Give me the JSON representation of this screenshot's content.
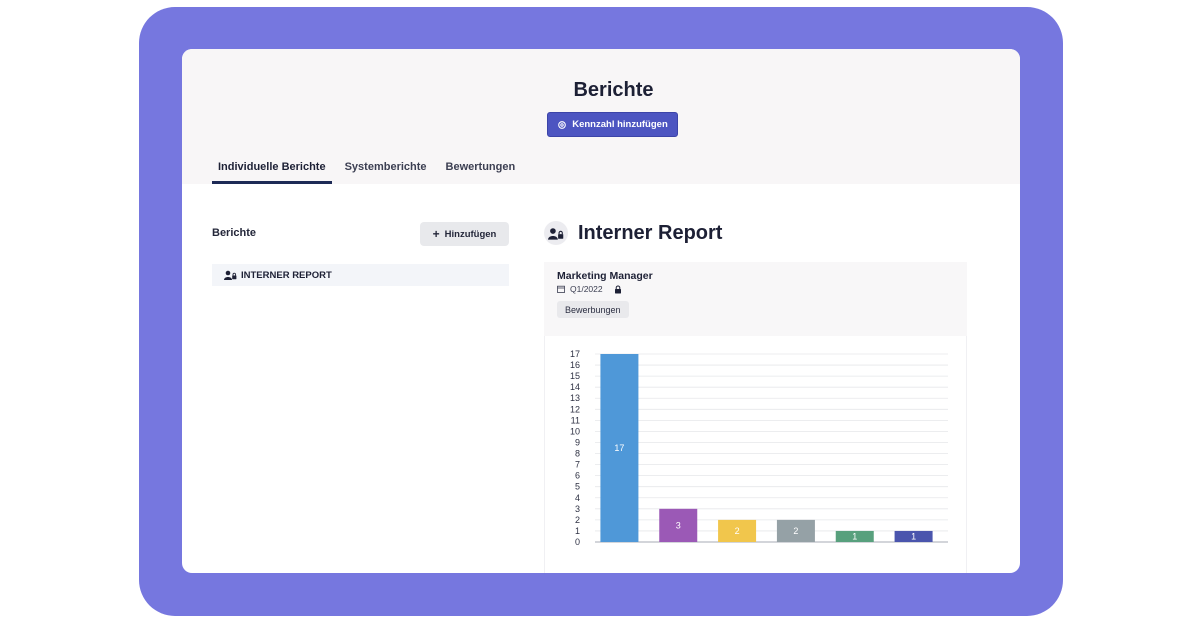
{
  "page": {
    "title": "Berichte",
    "add_metric_label": "Kennzahl hinzufügen"
  },
  "tabs": [
    {
      "label": "Individuelle Berichte",
      "active": true
    },
    {
      "label": "Systemberichte",
      "active": false
    },
    {
      "label": "Bewertungen",
      "active": false
    }
  ],
  "sidebar": {
    "heading": "Berichte",
    "add_label": "Hinzufügen",
    "items": [
      {
        "label": "INTERNER REPORT"
      }
    ]
  },
  "report": {
    "title": "Interner Report",
    "card_title": "Marketing Manager",
    "period": "Q1/2022",
    "tag": "Bewerbungen"
  },
  "colors": {
    "frame": "#7677df",
    "primary_button": "#4d55c1",
    "tab_underline": "#1d2a56"
  },
  "chart_data": {
    "type": "bar",
    "categories": [
      "",
      "",
      "",
      "",
      "",
      ""
    ],
    "values": [
      17,
      3,
      2,
      2,
      1,
      1
    ],
    "data_labels": [
      "17",
      "3",
      "2",
      "2",
      "1",
      "1"
    ],
    "colors": [
      "#4f98d8",
      "#9b59b6",
      "#f1c64c",
      "#95a1a6",
      "#58a07d",
      "#4a55ad"
    ],
    "ylim": [
      0,
      17
    ],
    "yticks": [
      "0",
      "1",
      "2",
      "3",
      "4",
      "5",
      "6",
      "7",
      "8",
      "9",
      "10",
      "11",
      "12",
      "13",
      "14",
      "15",
      "16",
      "17"
    ],
    "grid": true,
    "title": "",
    "xlabel": "",
    "ylabel": ""
  }
}
